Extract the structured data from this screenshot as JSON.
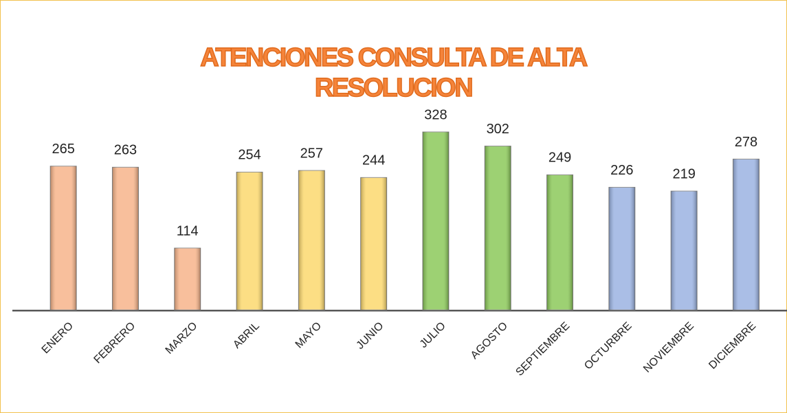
{
  "chart_data": {
    "type": "bar",
    "title": "ATENCIONES CONSULTA DE ALTA RESOLUCION",
    "categories": [
      "ENERO",
      "FEBRERO",
      "MARZO",
      "ABRIL",
      "MAYO",
      "JUNIO",
      "JULIO",
      "AGOSTO",
      "SEPTIEMBRE",
      "OCTURBRE",
      "NOVIEMBRE",
      "DICIEMBRE"
    ],
    "values": [
      265,
      263,
      114,
      254,
      257,
      244,
      328,
      302,
      249,
      226,
      219,
      278
    ],
    "colors": [
      "#f7b48a",
      "#f7b48a",
      "#f7b48a",
      "#fbd86e",
      "#fbd86e",
      "#fbd86e",
      "#8cc95a",
      "#8cc95a",
      "#8cc95a",
      "#9bb3e2",
      "#9bb3e2",
      "#9bb3e2"
    ]
  }
}
